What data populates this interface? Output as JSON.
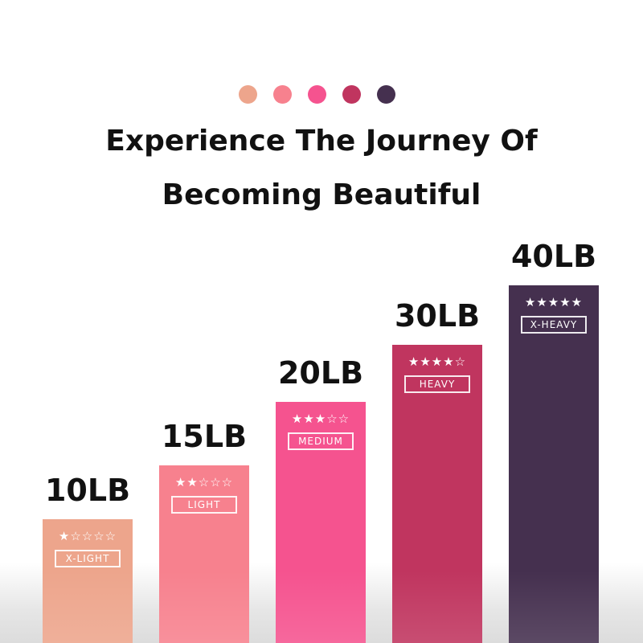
{
  "header": {
    "line1": "Experience The Journey Of",
    "line2": "Becoming Beautiful"
  },
  "dots": [
    "#eda58c",
    "#f7818e",
    "#f5538f",
    "#c0355f",
    "#45304f"
  ],
  "chart_data": {
    "type": "bar",
    "categories": [
      "X-LIGHT",
      "LIGHT",
      "MEDIUM",
      "HEAVY",
      "X-HEAVY"
    ],
    "values": [
      10,
      15,
      20,
      30,
      40
    ],
    "value_labels": [
      "10LB",
      "15LB",
      "20LB",
      "30LB",
      "40LB"
    ],
    "stars": [
      1,
      2,
      3,
      4,
      5
    ],
    "max_stars": 5,
    "colors": [
      "#eda58c",
      "#f7818e",
      "#f5538f",
      "#c0355f",
      "#45304f"
    ],
    "title": "",
    "xlabel": "",
    "ylabel": ""
  }
}
